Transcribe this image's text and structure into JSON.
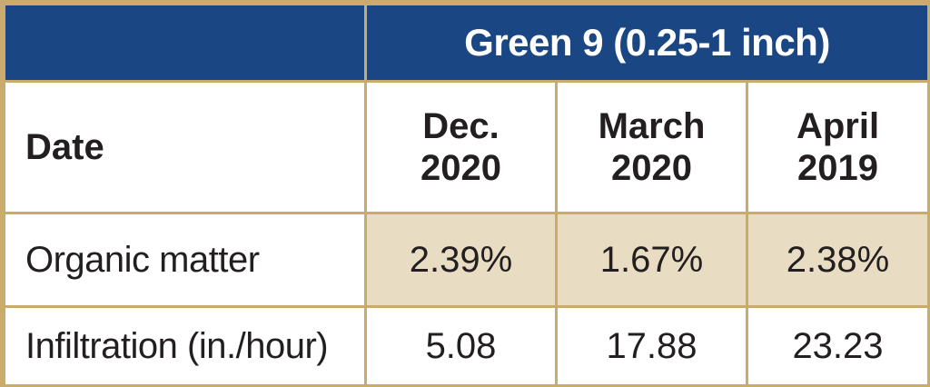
{
  "chart_data": {
    "type": "table",
    "group_header": "Green 9 (0.25-1 inch)",
    "row_header_label": "Date",
    "columns": [
      {
        "line1": "Dec.",
        "line2": "2020"
      },
      {
        "line1": "March",
        "line2": "2020"
      },
      {
        "line1": "April",
        "line2": "2019"
      }
    ],
    "rows": [
      {
        "label": "Organic matter",
        "values": [
          "2.39%",
          "1.67%",
          "2.38%"
        ]
      },
      {
        "label": "Infiltration (in./hour)",
        "values": [
          "5.08",
          "17.88",
          "23.23"
        ]
      }
    ]
  },
  "colors": {
    "header_blue": "#1a4784",
    "border_gold": "#c9ac6a",
    "highlight_tan": "#e8dcc2"
  }
}
